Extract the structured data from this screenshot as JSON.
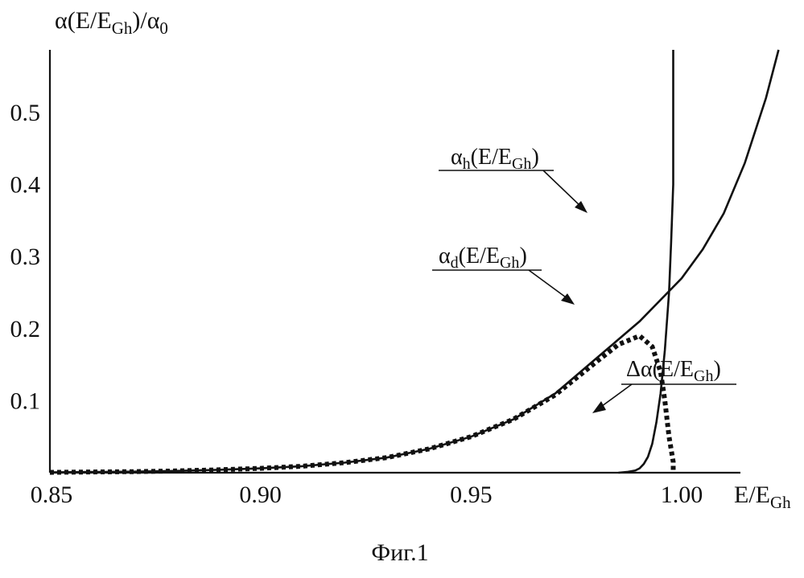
{
  "figure": {
    "caption": "Фиг.1"
  },
  "chart_data": {
    "type": "line",
    "ylabel": "α(E/EGh)/α0",
    "ylabel_parts": {
      "main": "α(E/E",
      "sub1": "Gh",
      "mid": ")/α",
      "sub2": "0"
    },
    "xlabel": "E/EGh",
    "xlabel_parts": {
      "main": "E/E",
      "sub": "Gh"
    },
    "xlim": [
      0.85,
      1.025
    ],
    "ylim": [
      0,
      0.6
    ],
    "x_ticks": [
      0.85,
      0.9,
      0.95,
      1.0
    ],
    "x_tick_labels": [
      "0.85",
      "0.90",
      "0.95",
      "1.00"
    ],
    "y_ticks": [
      0.1,
      0.2,
      0.3,
      0.4,
      0.5
    ],
    "y_tick_labels": [
      "0.1",
      "0.2",
      "0.3",
      "0.4",
      "0.5"
    ],
    "grid": false,
    "series": [
      {
        "name": "αh(E/EGh)",
        "label_parts": {
          "main": "α",
          "sub1": "h",
          "mid": "(E/E",
          "sub2": "Gh",
          "end": ")"
        },
        "style": "solid",
        "x": [
          0.985,
          0.987,
          0.989,
          0.99,
          0.991,
          0.992,
          0.993,
          0.994,
          0.995,
          0.996,
          0.997,
          0.9975,
          0.998,
          0.998,
          0.998
        ],
        "y": [
          0.0,
          0.001,
          0.003,
          0.006,
          0.012,
          0.022,
          0.04,
          0.07,
          0.11,
          0.17,
          0.25,
          0.32,
          0.4,
          0.5,
          0.6
        ]
      },
      {
        "name": "αd(E/EGh)",
        "label_parts": {
          "main": "α",
          "sub1": "d",
          "mid": "(E/E",
          "sub2": "Gh",
          "end": ")"
        },
        "style": "solid",
        "x": [
          0.85,
          0.86,
          0.87,
          0.88,
          0.89,
          0.9,
          0.91,
          0.92,
          0.93,
          0.94,
          0.95,
          0.96,
          0.97,
          0.98,
          0.99,
          1.0,
          1.005,
          1.01,
          1.015,
          1.02,
          1.023
        ],
        "y": [
          0.0005,
          0.001,
          0.0015,
          0.0025,
          0.004,
          0.006,
          0.009,
          0.014,
          0.021,
          0.033,
          0.05,
          0.074,
          0.11,
          0.16,
          0.21,
          0.27,
          0.31,
          0.36,
          0.43,
          0.52,
          0.59
        ]
      },
      {
        "name": "Δα(E/EGh)",
        "label_parts": {
          "main": "Δα(E/E",
          "sub": "Gh",
          "end": ")"
        },
        "style": "dotted",
        "x": [
          0.85,
          0.86,
          0.87,
          0.88,
          0.89,
          0.9,
          0.91,
          0.92,
          0.93,
          0.94,
          0.95,
          0.96,
          0.97,
          0.98,
          0.985,
          0.99,
          0.993,
          0.995,
          0.996,
          0.997,
          0.998,
          0.998
        ],
        "y": [
          0.0005,
          0.001,
          0.0015,
          0.0025,
          0.004,
          0.006,
          0.009,
          0.014,
          0.021,
          0.033,
          0.05,
          0.074,
          0.108,
          0.155,
          0.178,
          0.19,
          0.175,
          0.14,
          0.1,
          0.05,
          0.015,
          0.0
        ]
      }
    ]
  }
}
